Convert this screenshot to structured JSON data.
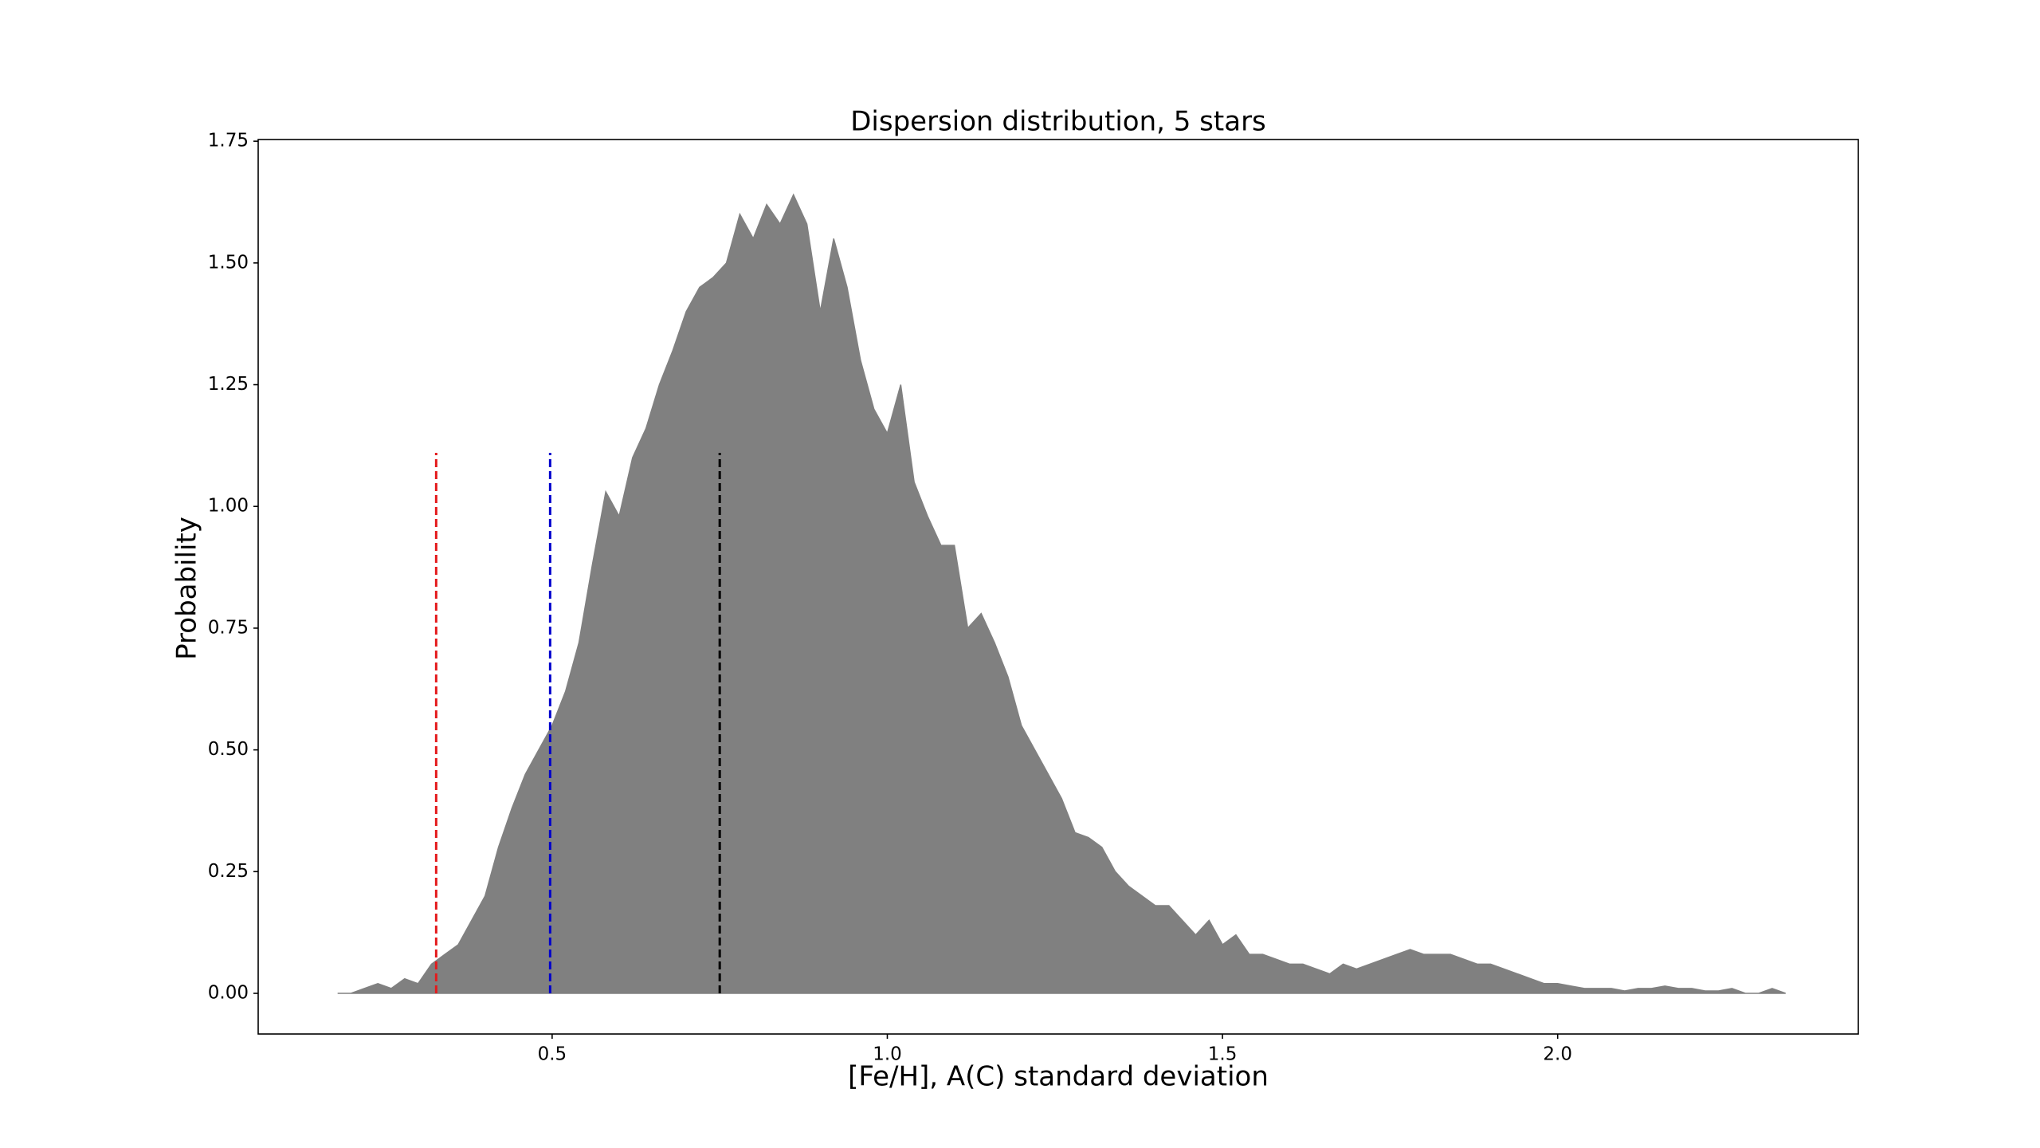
{
  "chart_data": {
    "type": "area",
    "title": "Dispersion distribution, 5 stars",
    "xlabel": "[Fe/H], A(C) standard deviation",
    "ylabel": "Probability",
    "x": [
      0.18,
      0.2,
      0.22,
      0.24,
      0.26,
      0.28,
      0.3,
      0.32,
      0.34,
      0.36,
      0.38,
      0.4,
      0.42,
      0.44,
      0.46,
      0.48,
      0.5,
      0.52,
      0.54,
      0.56,
      0.58,
      0.6,
      0.62,
      0.64,
      0.66,
      0.68,
      0.7,
      0.72,
      0.74,
      0.76,
      0.78,
      0.8,
      0.82,
      0.84,
      0.86,
      0.88,
      0.9,
      0.92,
      0.94,
      0.96,
      0.98,
      1.0,
      1.02,
      1.04,
      1.06,
      1.08,
      1.1,
      1.12,
      1.14,
      1.16,
      1.18,
      1.2,
      1.22,
      1.24,
      1.26,
      1.28,
      1.3,
      1.32,
      1.34,
      1.36,
      1.38,
      1.4,
      1.42,
      1.44,
      1.46,
      1.48,
      1.5,
      1.52,
      1.54,
      1.56,
      1.58,
      1.6,
      1.62,
      1.64,
      1.66,
      1.68,
      1.7,
      1.72,
      1.74,
      1.76,
      1.78,
      1.8,
      1.82,
      1.84,
      1.86,
      1.88,
      1.9,
      1.92,
      1.94,
      1.96,
      1.98,
      2.0,
      2.02,
      2.04,
      2.06,
      2.08,
      2.1,
      2.12,
      2.14,
      2.16,
      2.18,
      2.2,
      2.22,
      2.24,
      2.26,
      2.28,
      2.3,
      2.32,
      2.34
    ],
    "series": [
      {
        "color": "#808080",
        "values": [
          0.0,
          0.0,
          0.01,
          0.02,
          0.01,
          0.03,
          0.02,
          0.06,
          0.08,
          0.1,
          0.15,
          0.2,
          0.3,
          0.38,
          0.45,
          0.5,
          0.55,
          0.62,
          0.72,
          0.88,
          1.03,
          0.98,
          1.1,
          1.16,
          1.25,
          1.32,
          1.4,
          1.45,
          1.47,
          1.5,
          1.6,
          1.55,
          1.62,
          1.58,
          1.64,
          1.58,
          1.4,
          1.55,
          1.45,
          1.3,
          1.2,
          1.15,
          1.25,
          1.05,
          0.98,
          0.92,
          0.92,
          0.75,
          0.78,
          0.72,
          0.65,
          0.55,
          0.5,
          0.45,
          0.4,
          0.33,
          0.32,
          0.3,
          0.25,
          0.22,
          0.2,
          0.18,
          0.18,
          0.15,
          0.12,
          0.15,
          0.1,
          0.12,
          0.08,
          0.08,
          0.07,
          0.06,
          0.06,
          0.05,
          0.04,
          0.06,
          0.05,
          0.06,
          0.07,
          0.08,
          0.09,
          0.08,
          0.08,
          0.08,
          0.07,
          0.06,
          0.06,
          0.05,
          0.04,
          0.03,
          0.02,
          0.02,
          0.015,
          0.01,
          0.01,
          0.01,
          0.005,
          0.01,
          0.01,
          0.015,
          0.01,
          0.01,
          0.005,
          0.005,
          0.01,
          0.0,
          0.0,
          0.01,
          0.0
        ]
      }
    ],
    "vlines": [
      {
        "x": 0.327,
        "ymax": 1.11,
        "color": "#e41a1c"
      },
      {
        "x": 0.497,
        "ymax": 1.11,
        "color": "#0000cc"
      },
      {
        "x": 0.75,
        "ymax": 1.11,
        "color": "#000000"
      }
    ],
    "xlim": [
      0.0615,
      2.4485
    ],
    "ylim": [
      -0.0835,
      1.7535
    ],
    "xticks": [
      0.5,
      {
        "value": 1,
        "label": "1.0"
      },
      1.5,
      {
        "value": 2,
        "label": "2.0"
      }
    ],
    "yticks": [
      {
        "value": 0,
        "label": "0.00"
      },
      0.25,
      {
        "value": 0.5,
        "label": "0.50"
      },
      0.75,
      {
        "value": 1,
        "label": "1.00"
      },
      1.25,
      {
        "value": 1.5,
        "label": "1.50"
      },
      1.75
    ],
    "grid": false
  }
}
